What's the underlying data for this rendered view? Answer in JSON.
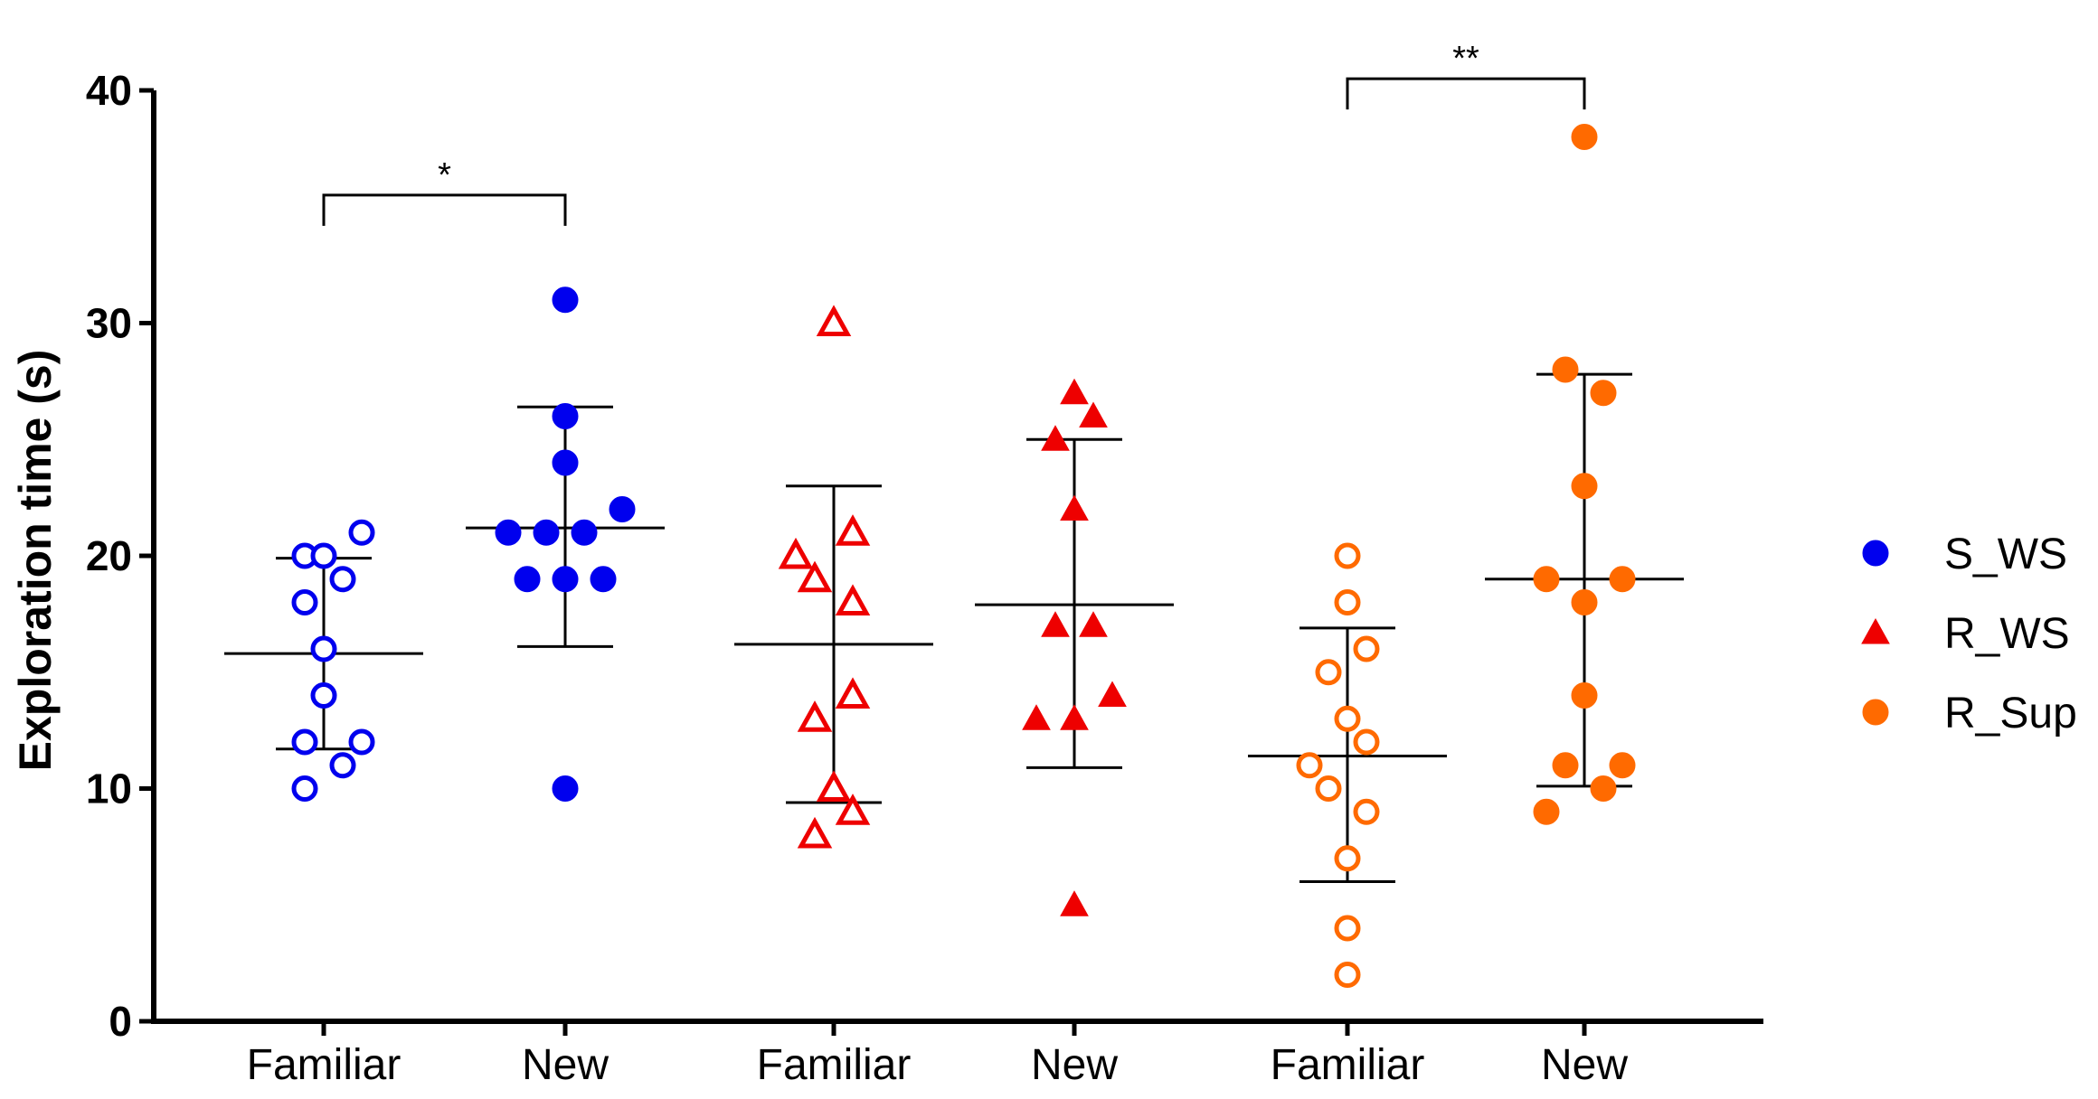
{
  "chart_data": {
    "type": "scatter",
    "title": "",
    "xlabel": "",
    "ylabel": "Exploration time (s)",
    "ylim": [
      0,
      40
    ],
    "yticks": [
      0,
      10,
      20,
      30,
      40
    ],
    "categories": [
      "Familiar",
      "New",
      "Familiar",
      "New",
      "Familiar",
      "New"
    ],
    "legend": [
      {
        "name": "S_WS",
        "color": "#0000ee",
        "marker": "circle"
      },
      {
        "name": "R_WS",
        "color": "#ee0000",
        "marker": "triangle"
      },
      {
        "name": "R_Sup",
        "color": "#ff6a00",
        "marker": "circle"
      }
    ],
    "legend_position": "right",
    "groups": [
      {
        "series": "S_WS",
        "category": "Familiar",
        "filled": false,
        "mean": 15.8,
        "sd_low": 11.7,
        "sd_high": 19.9,
        "points": [
          [
            -1,
            20
          ],
          [
            0,
            20
          ],
          [
            2,
            21
          ],
          [
            -1,
            18
          ],
          [
            1,
            19
          ],
          [
            0,
            16
          ],
          [
            0,
            14
          ],
          [
            -1,
            12
          ],
          [
            2,
            12
          ],
          [
            1,
            11
          ],
          [
            -1,
            10
          ]
        ]
      },
      {
        "series": "S_WS",
        "category": "New",
        "filled": true,
        "mean": 21.2,
        "sd_low": 16.1,
        "sd_high": 26.4,
        "points": [
          [
            0,
            31
          ],
          [
            0,
            26
          ],
          [
            0,
            24
          ],
          [
            3,
            22
          ],
          [
            -3,
            21
          ],
          [
            -1,
            21
          ],
          [
            1,
            21
          ],
          [
            -2,
            19
          ],
          [
            0,
            19
          ],
          [
            2,
            19
          ],
          [
            0,
            10
          ]
        ]
      },
      {
        "series": "R_WS",
        "category": "Familiar",
        "filled": false,
        "mean": 16.2,
        "sd_low": 9.4,
        "sd_high": 23,
        "points": [
          [
            0,
            30
          ],
          [
            1,
            21
          ],
          [
            -2,
            20
          ],
          [
            -1,
            19
          ],
          [
            1,
            18
          ],
          [
            1,
            14
          ],
          [
            -1,
            13
          ],
          [
            0,
            10
          ],
          [
            1,
            9
          ],
          [
            -1,
            8
          ]
        ]
      },
      {
        "series": "R_WS",
        "category": "New",
        "filled": true,
        "mean": 17.9,
        "sd_low": 10.9,
        "sd_high": 25,
        "points": [
          [
            0,
            27
          ],
          [
            1,
            26
          ],
          [
            -1,
            25
          ],
          [
            0,
            22
          ],
          [
            -1,
            17
          ],
          [
            1,
            17
          ],
          [
            2,
            14
          ],
          [
            -2,
            13
          ],
          [
            0,
            13
          ],
          [
            0,
            5
          ]
        ]
      },
      {
        "series": "R_Sup",
        "category": "Familiar",
        "filled": false,
        "mean": 11.4,
        "sd_low": 6,
        "sd_high": 16.9,
        "points": [
          [
            0,
            20
          ],
          [
            0,
            18
          ],
          [
            1,
            16
          ],
          [
            -1,
            15
          ],
          [
            0,
            13
          ],
          [
            1,
            12
          ],
          [
            -2,
            11
          ],
          [
            -1,
            10
          ],
          [
            1,
            9
          ],
          [
            0,
            7
          ],
          [
            0,
            4
          ],
          [
            0,
            2
          ]
        ]
      },
      {
        "series": "R_Sup",
        "category": "New",
        "filled": true,
        "mean": 19,
        "sd_low": 10.1,
        "sd_high": 27.8,
        "points": [
          [
            0,
            38
          ],
          [
            -1,
            28
          ],
          [
            1,
            27
          ],
          [
            0,
            23
          ],
          [
            -2,
            19
          ],
          [
            2,
            19
          ],
          [
            0,
            18
          ],
          [
            0,
            14
          ],
          [
            -1,
            11
          ],
          [
            2,
            11
          ],
          [
            1,
            10
          ],
          [
            -2,
            9
          ]
        ]
      }
    ],
    "annotations": [
      {
        "from": 0,
        "to": 1,
        "at": 35.5,
        "label": "*"
      },
      {
        "from": 4,
        "to": 5,
        "at": 40.5,
        "label": "**"
      }
    ]
  }
}
